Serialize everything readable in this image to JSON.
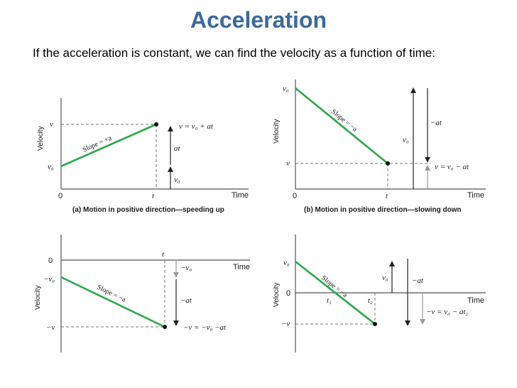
{
  "title": "Acceleration",
  "subtitle": "If the acceleration is constant, we can find the velocity as a function of time:",
  "common": {
    "velocity_label": "Velocity",
    "time_label": "Time",
    "zero": "0",
    "t": "t",
    "t1": "t₁",
    "t2": "t₂",
    "v0": "v₀",
    "v": "v",
    "neg_v0": "−v₀",
    "neg_v": "−v",
    "neg_at": "−at",
    "at": "at",
    "slope_pos": "Slope = +a",
    "slope_neg": "Slope = −a"
  },
  "panel_a": {
    "eq": "v = v₀ + at",
    "caption": "(a) Motion in positive direction—speeding up"
  },
  "panel_b": {
    "eq": "v = v₀ − at",
    "caption": "(b) Motion in positive direction—slowing down"
  },
  "panel_c": {
    "eq": "−v = −v₀ −at"
  },
  "panel_d": {
    "eq": "−v = v₀ − at₂"
  },
  "colors": {
    "title": "#3b6a9b",
    "slope_line": "#2aa84a"
  }
}
